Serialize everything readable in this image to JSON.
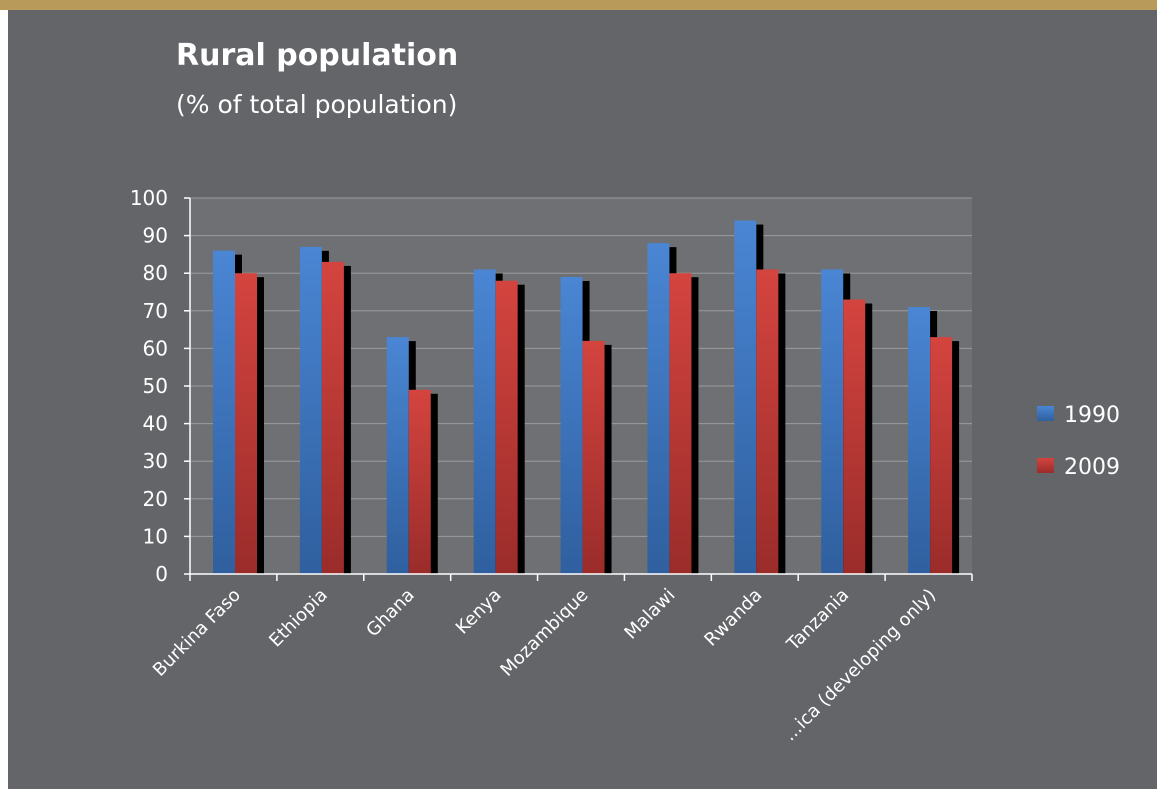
{
  "title": "Rural population",
  "subtitle": "(% of total population)",
  "colors": {
    "background": "#636569",
    "top_bar": "#b89a5a",
    "plot_area": "#6e7074",
    "series_1990": "#3a73c0",
    "series_2009": "#c23a36"
  },
  "chart_data": {
    "type": "bar",
    "title": "Rural population",
    "subtitle": "(% of total population)",
    "xlabel": "",
    "ylabel": "",
    "ylim": [
      0,
      100
    ],
    "yticks": [
      0,
      10,
      20,
      30,
      40,
      50,
      60,
      70,
      80,
      90,
      100
    ],
    "grid": true,
    "legend_position": "right",
    "categories": [
      "Burkina Faso",
      "Ethiopia",
      "Ghana",
      "Kenya",
      "Mozambique",
      "Malawi",
      "Rwanda",
      "Tanzania",
      "...ica (developing only)"
    ],
    "series": [
      {
        "name": "1990",
        "values": [
          86,
          87,
          63,
          81,
          79,
          88,
          94,
          81,
          71
        ]
      },
      {
        "name": "2009",
        "values": [
          80,
          83,
          49,
          78,
          62,
          80,
          81,
          73,
          63
        ]
      }
    ]
  }
}
